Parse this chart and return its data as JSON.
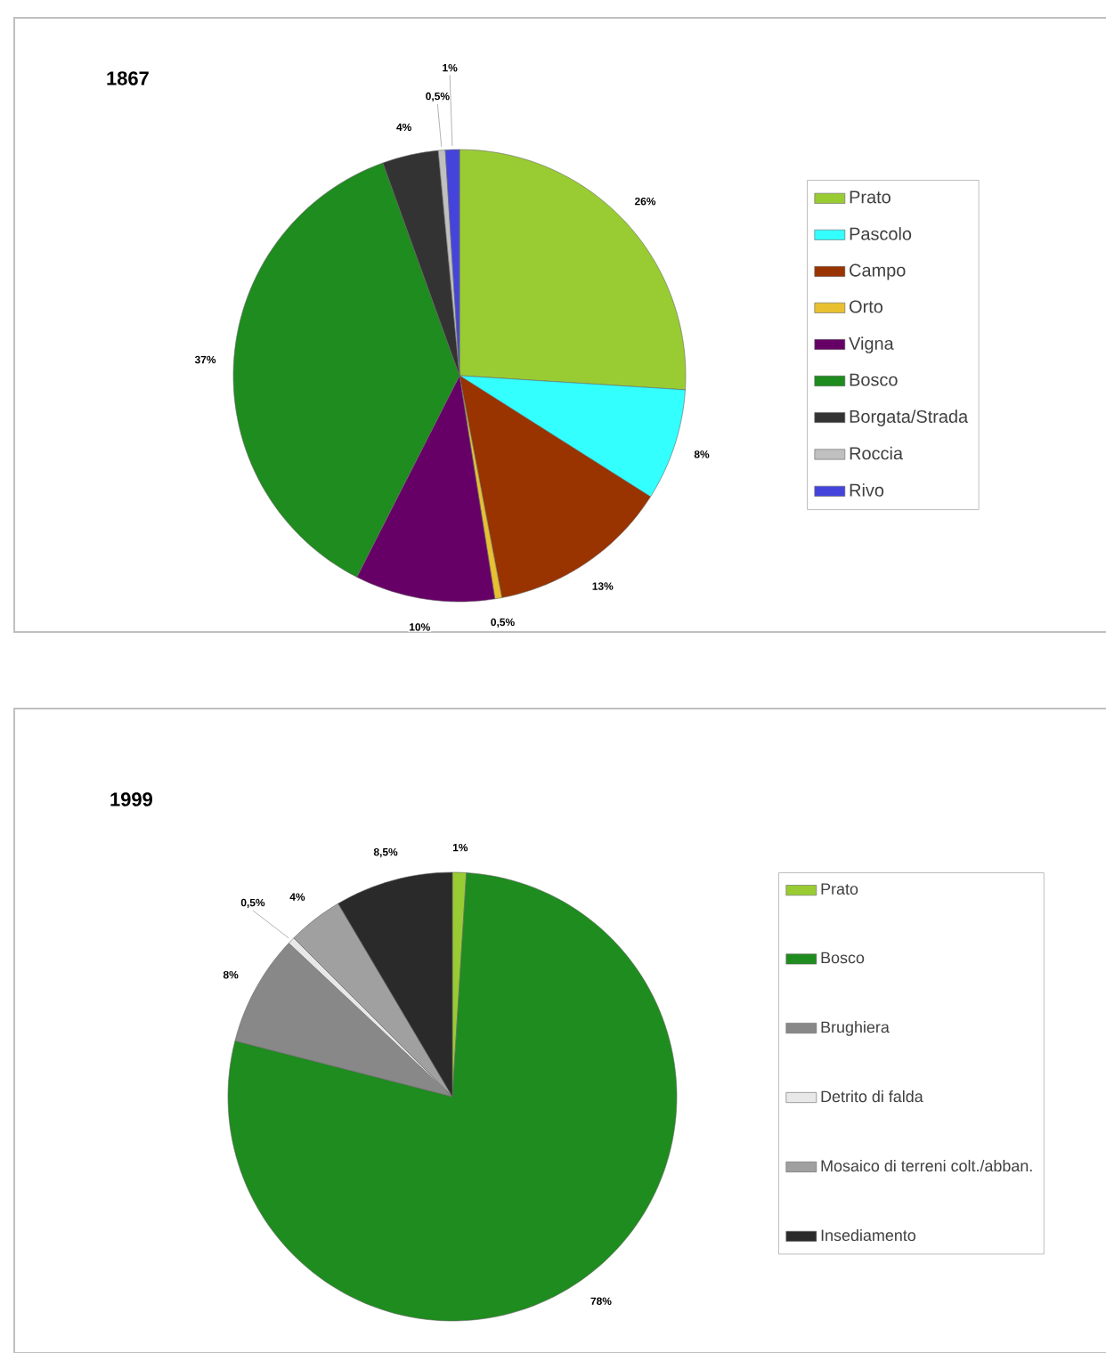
{
  "chart_data": [
    {
      "type": "pie",
      "title": "1867",
      "legend": "right",
      "categories": [
        "Prato",
        "Pascolo",
        "Campo",
        "Orto",
        "Vigna",
        "Bosco",
        "Borgata/Strada",
        "Roccia",
        "Rivo"
      ],
      "values": [
        26,
        8,
        13,
        0.5,
        10,
        37,
        4,
        0.5,
        1
      ],
      "value_labels": [
        "26%",
        "8%",
        "13%",
        "0,5%",
        "10%",
        "37%",
        "4%",
        "0,5%",
        "1%"
      ],
      "colors": [
        "#99cc33",
        "#33ffff",
        "#993300",
        "#e8c030",
        "#660066",
        "#1e8c1e",
        "#333333",
        "#c0c0c0",
        "#4444dd"
      ]
    },
    {
      "type": "pie",
      "title": "1999",
      "legend": "right",
      "categories": [
        "Prato",
        "Bosco",
        "Brughiera",
        "Detrito di falda",
        "Mosaico di terreni colt./abban.",
        "Insediamento"
      ],
      "values": [
        1,
        78,
        8,
        0.5,
        4,
        8.5
      ],
      "value_labels": [
        "1%",
        "78%",
        "8%",
        "0,5%",
        "4%",
        "8,5%"
      ],
      "colors": [
        "#99cc33",
        "#1e8c1e",
        "#888888",
        "#e8e8e8",
        "#a0a0a0",
        "#2a2a2a"
      ]
    }
  ]
}
